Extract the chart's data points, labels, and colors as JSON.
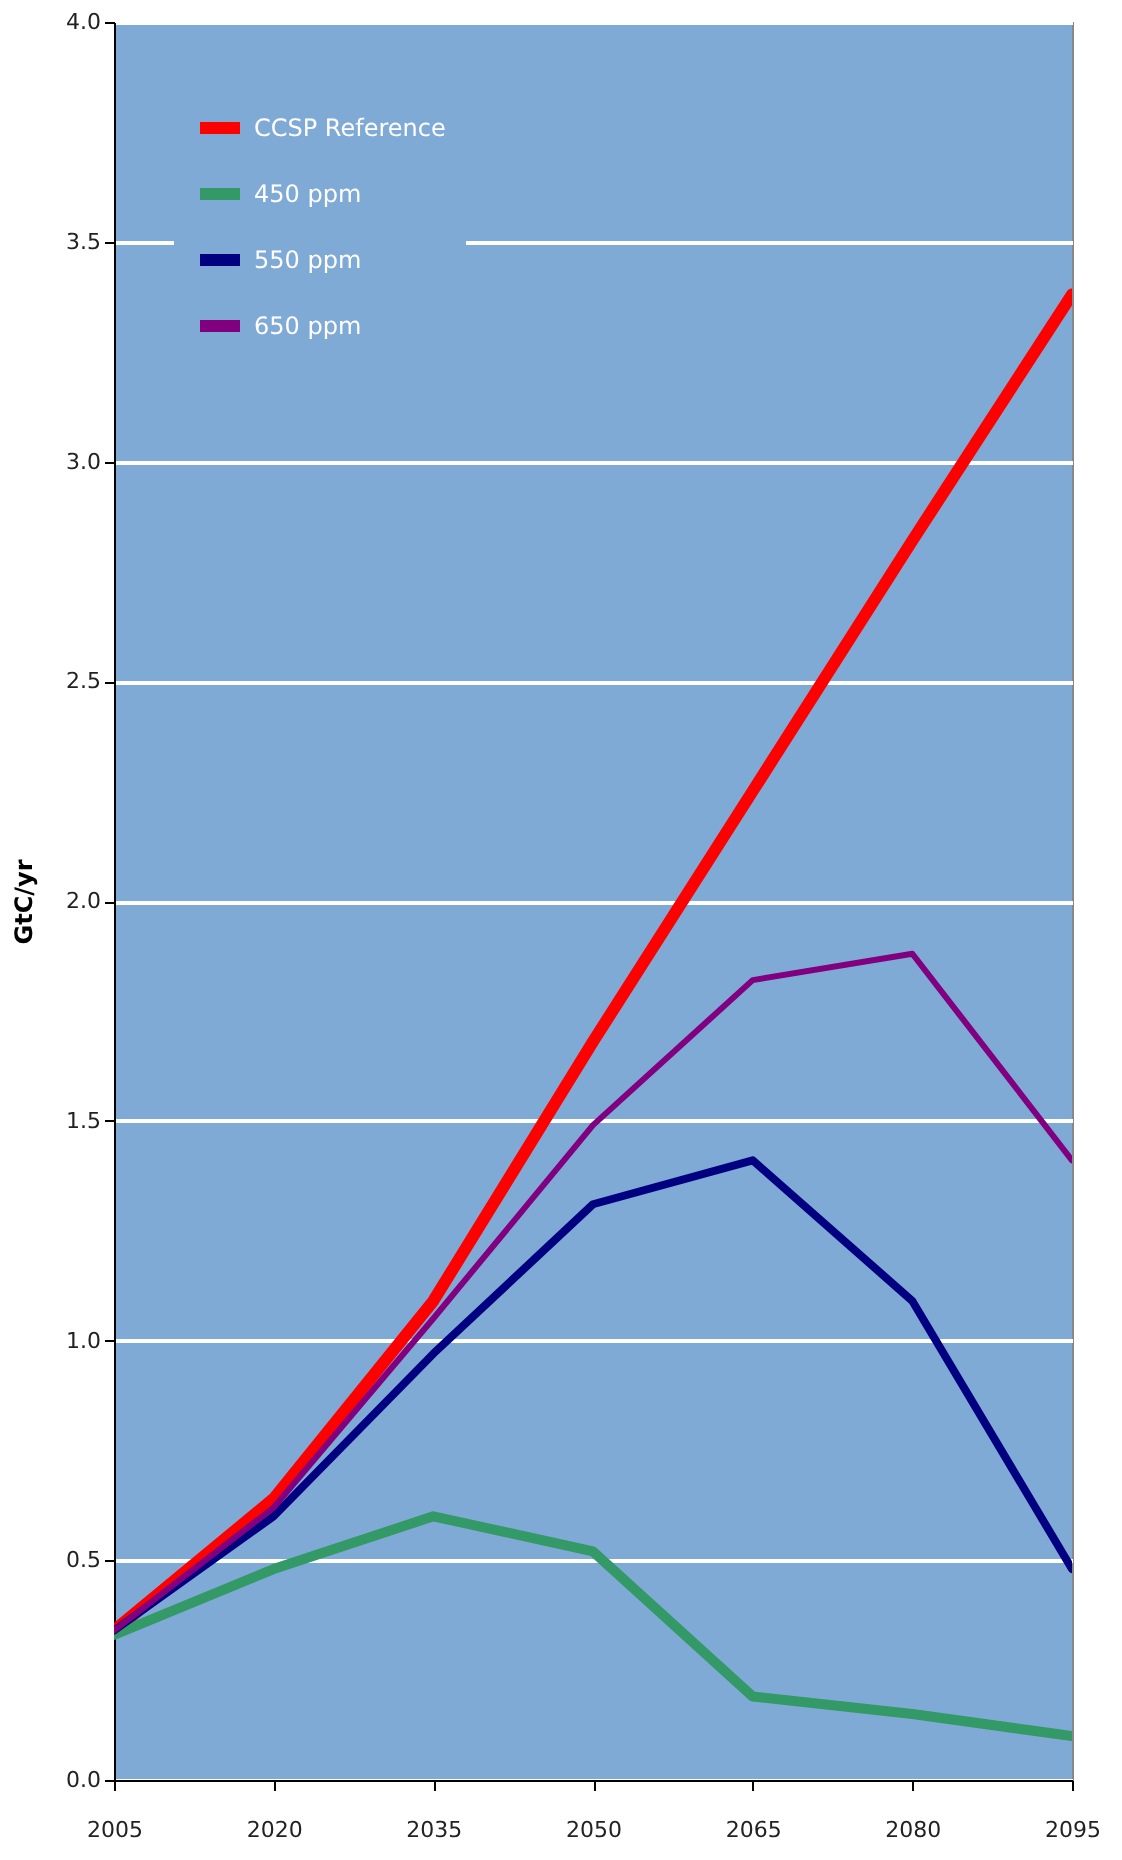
{
  "chart_data": {
    "type": "line",
    "ylabel": "GtC/yr",
    "x": [
      2005,
      2020,
      2035,
      2050,
      2065,
      2080,
      2095
    ],
    "series": [
      {
        "name": "CCSP Reference",
        "color": "#ff0000",
        "values": [
          0.34,
          0.64,
          1.09,
          1.68,
          2.25,
          2.82,
          3.38
        ]
      },
      {
        "name": "450 ppm",
        "color": "#339966",
        "values": [
          0.33,
          0.48,
          0.6,
          0.52,
          0.19,
          0.15,
          0.1
        ]
      },
      {
        "name": "550 ppm",
        "color": "#000080",
        "values": [
          0.34,
          0.6,
          0.97,
          1.31,
          1.41,
          1.09,
          0.48
        ]
      },
      {
        "name": "650 ppm",
        "color": "#800080",
        "values": [
          0.34,
          0.62,
          1.05,
          1.49,
          1.82,
          1.88,
          1.41
        ]
      }
    ],
    "xlim": [
      2005,
      2095
    ],
    "xticks": [
      2005,
      2020,
      2035,
      2050,
      2065,
      2080,
      2095
    ],
    "ylim": [
      0,
      4
    ],
    "yticks": [
      {
        "value": 0,
        "label": "0.0"
      },
      {
        "value": 0.5,
        "label": "0.5"
      },
      {
        "value": 1,
        "label": "1.0"
      },
      {
        "value": 1.5,
        "label": "1.5"
      },
      {
        "value": 2,
        "label": "2.0"
      },
      {
        "value": 2.5,
        "label": "2.5"
      },
      {
        "value": 3,
        "label": "3.0"
      },
      {
        "value": 3.5,
        "label": "3.5"
      },
      {
        "value": 4,
        "label": "4.0"
      }
    ],
    "grid": "y",
    "legend": "top left",
    "marker": "none",
    "line_style": "solid"
  }
}
